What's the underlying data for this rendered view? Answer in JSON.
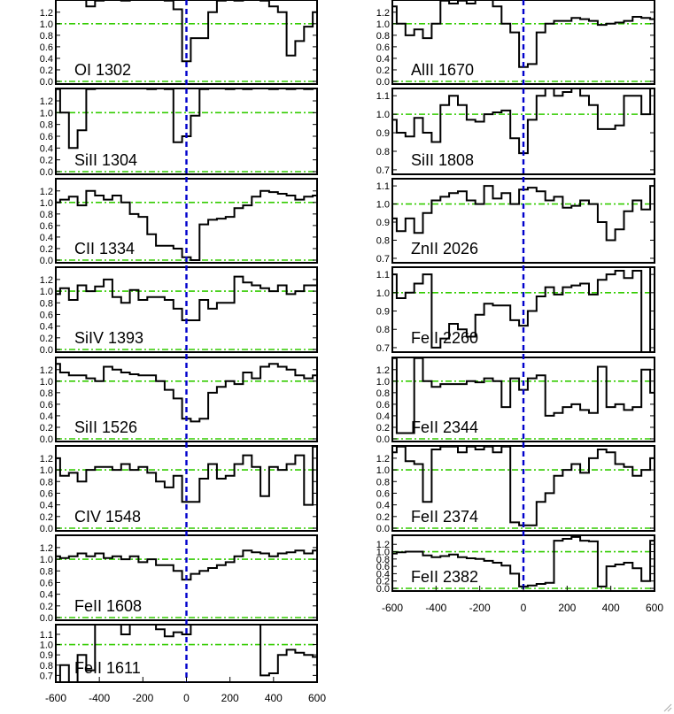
{
  "chart_data": [
    {
      "type": "line",
      "label": "OI 1302",
      "ylim": [
        0,
        1.35
      ],
      "yticks": [
        "0.0",
        "0.2",
        "0.4",
        "0.6",
        "0.8",
        "1.0",
        "1.2"
      ],
      "x": [
        -600,
        -560,
        -520,
        -480,
        -440,
        -400,
        -360,
        -320,
        -280,
        -240,
        -200,
        -160,
        -120,
        -80,
        -40,
        0,
        40,
        80,
        120,
        160,
        200,
        240,
        280,
        320,
        360,
        400,
        440,
        480,
        520,
        560,
        600
      ],
      "values": [
        1.45,
        1.45,
        1.42,
        1.5,
        1.3,
        1.4,
        1.45,
        1.5,
        1.4,
        1.45,
        1.42,
        1.5,
        1.45,
        1.4,
        1.25,
        0.35,
        0.75,
        0.75,
        1.2,
        1.4,
        1.45,
        1.4,
        1.5,
        1.45,
        1.4,
        1.3,
        1.2,
        0.45,
        0.7,
        0.95,
        1.2
      ]
    },
    {
      "type": "line",
      "label": "SiII 1304",
      "ylim": [
        0,
        1.35
      ],
      "yticks": [
        "0.0",
        "0.2",
        "0.4",
        "0.6",
        "0.8",
        "1.0",
        "1.2"
      ],
      "x": [
        -600,
        -560,
        -520,
        -480,
        -440,
        -400,
        -360,
        -320,
        -280,
        -240,
        -200,
        -160,
        -120,
        -80,
        -40,
        0,
        40,
        80,
        120,
        160,
        200,
        240,
        280,
        320,
        360,
        400,
        440,
        480,
        520,
        560,
        600
      ],
      "values": [
        1.4,
        1.0,
        0.4,
        0.7,
        1.4,
        1.45,
        1.42,
        1.45,
        1.5,
        1.45,
        1.42,
        1.4,
        1.45,
        1.4,
        0.5,
        0.6,
        0.95,
        1.4,
        1.45,
        1.42,
        1.4,
        1.45,
        1.4,
        1.45,
        1.42,
        1.4,
        1.45,
        1.4,
        1.42,
        1.4,
        1.45
      ]
    },
    {
      "type": "line",
      "label": "CII 1334",
      "ylim": [
        0,
        1.35
      ],
      "yticks": [
        "0.0",
        "0.2",
        "0.4",
        "0.6",
        "0.8",
        "1.0",
        "1.2"
      ],
      "x": [
        -600,
        -560,
        -520,
        -480,
        -440,
        -400,
        -360,
        -320,
        -280,
        -240,
        -200,
        -160,
        -120,
        -80,
        -40,
        0,
        40,
        80,
        120,
        160,
        200,
        240,
        280,
        320,
        360,
        400,
        440,
        480,
        520,
        560,
        600
      ],
      "values": [
        1.0,
        1.05,
        1.1,
        0.95,
        1.2,
        1.12,
        1.05,
        1.12,
        1.0,
        0.8,
        0.75,
        0.45,
        0.25,
        0.25,
        0.2,
        0.05,
        0.0,
        0.62,
        0.7,
        0.72,
        0.75,
        0.9,
        0.95,
        1.1,
        1.2,
        1.18,
        1.15,
        1.12,
        1.05,
        1.1,
        1.12
      ]
    },
    {
      "type": "line",
      "label": "SiIV 1393",
      "ylim": [
        0,
        1.35
      ],
      "yticks": [
        "0.0",
        "0.2",
        "0.4",
        "0.6",
        "0.8",
        "1.0",
        "1.2"
      ],
      "x": [
        -600,
        -560,
        -520,
        -480,
        -440,
        -400,
        -360,
        -320,
        -280,
        -240,
        -200,
        -160,
        -120,
        -80,
        -40,
        0,
        40,
        80,
        120,
        160,
        200,
        240,
        280,
        320,
        360,
        400,
        440,
        480,
        520,
        560,
        600
      ],
      "values": [
        0.95,
        1.05,
        0.85,
        1.1,
        1.0,
        1.08,
        1.2,
        0.9,
        0.8,
        1.02,
        0.85,
        0.9,
        0.9,
        0.85,
        0.7,
        0.5,
        0.5,
        0.85,
        0.7,
        0.8,
        0.8,
        1.25,
        1.15,
        1.1,
        1.05,
        1.0,
        1.1,
        0.95,
        1.0,
        1.1,
        1.1
      ]
    },
    {
      "type": "line",
      "label": "SiII 1526",
      "ylim": [
        0,
        1.35
      ],
      "yticks": [
        "0.0",
        "0.2",
        "0.4",
        "0.6",
        "0.8",
        "1.0",
        "1.2"
      ],
      "x": [
        -600,
        -560,
        -520,
        -480,
        -440,
        -400,
        -360,
        -320,
        -280,
        -240,
        -200,
        -160,
        -120,
        -80,
        -40,
        0,
        40,
        80,
        120,
        160,
        200,
        240,
        280,
        320,
        360,
        400,
        440,
        480,
        520,
        560,
        600
      ],
      "values": [
        1.3,
        1.15,
        1.1,
        1.1,
        1.05,
        1.0,
        1.25,
        1.2,
        1.15,
        1.12,
        1.1,
        1.1,
        1.0,
        0.85,
        0.7,
        0.35,
        0.3,
        0.35,
        0.8,
        0.9,
        1.0,
        0.95,
        1.15,
        1.05,
        1.25,
        1.3,
        1.25,
        1.2,
        1.1,
        1.05,
        1.1
      ]
    },
    {
      "type": "line",
      "label": "CIV 1548",
      "ylim": [
        0,
        1.35
      ],
      "yticks": [
        "0.0",
        "0.2",
        "0.4",
        "0.6",
        "0.8",
        "1.0",
        "1.2"
      ],
      "x": [
        -600,
        -560,
        -520,
        -480,
        -440,
        -400,
        -360,
        -320,
        -280,
        -240,
        -200,
        -160,
        -120,
        -80,
        -40,
        0,
        40,
        80,
        120,
        160,
        200,
        240,
        280,
        320,
        360,
        400,
        440,
        480,
        520,
        560,
        600
      ],
      "values": [
        1.2,
        0.9,
        0.95,
        0.8,
        1.0,
        1.05,
        1.05,
        1.0,
        1.1,
        1.0,
        1.05,
        0.95,
        0.8,
        0.7,
        0.9,
        0.45,
        0.45,
        0.85,
        1.1,
        0.85,
        0.9,
        1.1,
        1.25,
        1.05,
        0.55,
        1.05,
        1.0,
        1.1,
        1.25,
        0.4,
        1.4
      ]
    },
    {
      "type": "line",
      "label": "FeII 1608",
      "ylim": [
        0,
        1.35
      ],
      "yticks": [
        "0.0",
        "0.2",
        "0.4",
        "0.6",
        "0.8",
        "1.0",
        "1.2"
      ],
      "x": [
        -600,
        -560,
        -520,
        -480,
        -440,
        -400,
        -360,
        -320,
        -280,
        -240,
        -200,
        -160,
        -120,
        -80,
        -40,
        0,
        40,
        80,
        120,
        160,
        200,
        240,
        280,
        320,
        360,
        400,
        440,
        480,
        520,
        560,
        600
      ],
      "values": [
        1.05,
        1.02,
        1.05,
        1.1,
        1.05,
        1.1,
        1.02,
        1.05,
        1.0,
        1.05,
        0.95,
        1.0,
        0.9,
        0.9,
        0.8,
        0.65,
        0.75,
        0.8,
        0.85,
        0.9,
        0.95,
        1.05,
        1.15,
        1.12,
        1.1,
        1.05,
        1.1,
        1.12,
        1.15,
        1.1,
        1.15
      ]
    },
    {
      "type": "line",
      "label": "FeII 1611",
      "ylim": [
        0.66,
        1.16
      ],
      "yticks": [
        "0.7",
        "0.8",
        "0.9",
        "1.0",
        "1.1"
      ],
      "x": [
        -600,
        -560,
        -520,
        -480,
        -440,
        -400,
        -360,
        -320,
        -280,
        -240,
        -200,
        -160,
        -120,
        -80,
        -40,
        0,
        40,
        80,
        120,
        160,
        200,
        240,
        280,
        320,
        360,
        400,
        440,
        480,
        520,
        560,
        600
      ],
      "values": [
        0.5,
        0.8,
        0.6,
        0.9,
        0.75,
        1.2,
        1.3,
        1.2,
        1.1,
        1.2,
        1.25,
        1.2,
        1.15,
        1.08,
        1.12,
        1.1,
        1.2,
        1.3,
        1.2,
        1.3,
        1.25,
        1.2,
        1.25,
        1.2,
        0.7,
        0.72,
        0.9,
        0.95,
        0.92,
        0.9,
        0.88
      ]
    },
    {
      "type": "line",
      "label": "AlII 1670",
      "ylim": [
        0,
        1.35
      ],
      "yticks": [
        "0.0",
        "0.2",
        "0.4",
        "0.6",
        "0.8",
        "1.0",
        "1.2"
      ],
      "x": [
        -600,
        -560,
        -520,
        -480,
        -440,
        -400,
        -360,
        -320,
        -280,
        -240,
        -200,
        -160,
        -120,
        -80,
        -40,
        0,
        40,
        80,
        120,
        160,
        200,
        240,
        280,
        320,
        360,
        400,
        440,
        480,
        520,
        560,
        600
      ],
      "values": [
        1.3,
        1.0,
        0.8,
        0.9,
        0.75,
        1.0,
        1.4,
        1.35,
        1.4,
        1.35,
        1.5,
        1.45,
        1.3,
        1.0,
        0.85,
        0.25,
        0.3,
        0.85,
        1.0,
        1.05,
        1.05,
        1.1,
        1.08,
        1.05,
        0.98,
        1.0,
        1.02,
        1.05,
        1.12,
        1.1,
        1.08
      ]
    },
    {
      "type": "line",
      "label": "SiII 1808",
      "ylim": [
        0.69,
        1.12
      ],
      "yticks": [
        "0.7",
        "0.8",
        "0.9",
        "1.0",
        "1.1"
      ],
      "x": [
        -600,
        -560,
        -520,
        -480,
        -440,
        -400,
        -360,
        -320,
        -280,
        -240,
        -200,
        -160,
        -120,
        -80,
        -40,
        0,
        40,
        80,
        120,
        160,
        200,
        240,
        280,
        320,
        360,
        400,
        440,
        480,
        520,
        560,
        600
      ],
      "values": [
        0.97,
        0.9,
        0.88,
        0.98,
        0.9,
        0.85,
        1.05,
        1.1,
        1.05,
        0.97,
        0.96,
        1.0,
        1.01,
        1.02,
        0.87,
        0.79,
        0.97,
        1.1,
        1.15,
        1.1,
        1.12,
        1.15,
        1.1,
        1.05,
        0.92,
        0.92,
        0.94,
        1.1,
        1.1,
        1.0,
        1.15
      ]
    },
    {
      "type": "line",
      "label": "ZnII 2026",
      "ylim": [
        0.69,
        1.12
      ],
      "yticks": [
        "0.7",
        "0.8",
        "0.9",
        "1.0",
        "1.1"
      ],
      "x": [
        -600,
        -560,
        -520,
        -480,
        -440,
        -400,
        -360,
        -320,
        -280,
        -240,
        -200,
        -160,
        -120,
        -80,
        -40,
        0,
        40,
        80,
        120,
        160,
        200,
        240,
        280,
        320,
        360,
        400,
        440,
        480,
        520,
        560,
        600
      ],
      "values": [
        0.92,
        0.85,
        0.92,
        0.84,
        0.95,
        1.02,
        1.04,
        1.06,
        1.07,
        1.02,
        1.0,
        1.1,
        1.03,
        1.06,
        1.0,
        1.08,
        1.09,
        1.07,
        1.02,
        1.04,
        0.98,
        0.99,
        1.02,
        1.0,
        0.9,
        0.8,
        0.86,
        0.96,
        1.02,
        0.97,
        1.1
      ]
    },
    {
      "type": "line",
      "label": "FeII 2260",
      "ylim": [
        0.69,
        1.12
      ],
      "yticks": [
        "0.7",
        "0.8",
        "0.9",
        "1.0",
        "1.1"
      ],
      "x": [
        -600,
        -560,
        -520,
        -480,
        -440,
        -400,
        -360,
        -320,
        -280,
        -240,
        -200,
        -160,
        -120,
        -80,
        -40,
        0,
        40,
        80,
        120,
        160,
        200,
        240,
        280,
        320,
        360,
        400,
        440,
        480,
        520,
        560,
        600
      ],
      "values": [
        1.1,
        0.97,
        1.0,
        1.05,
        1.1,
        0.7,
        0.75,
        0.83,
        0.8,
        0.76,
        0.88,
        0.94,
        0.93,
        0.93,
        0.85,
        0.82,
        0.9,
        0.98,
        1.03,
        0.99,
        1.03,
        1.04,
        1.05,
        0.99,
        1.07,
        1.1,
        1.12,
        1.08,
        1.12,
        0.6,
        1.15
      ]
    },
    {
      "type": "line",
      "label": "FeII 2344",
      "ylim": [
        0,
        1.35
      ],
      "yticks": [
        "0.0",
        "0.2",
        "0.4",
        "0.6",
        "0.8",
        "1.0",
        "1.2"
      ],
      "x": [
        -600,
        -560,
        -520,
        -480,
        -440,
        -400,
        -360,
        -320,
        -280,
        -240,
        -200,
        -160,
        -120,
        -80,
        -40,
        0,
        40,
        80,
        120,
        160,
        200,
        240,
        280,
        320,
        360,
        400,
        440,
        480,
        520,
        560,
        600
      ],
      "values": [
        1.4,
        0.1,
        0.1,
        1.4,
        1.0,
        0.9,
        0.95,
        0.95,
        0.95,
        1.0,
        0.98,
        1.05,
        1.0,
        0.55,
        1.05,
        0.85,
        1.05,
        1.1,
        0.4,
        0.45,
        0.55,
        0.6,
        0.5,
        0.45,
        1.25,
        0.55,
        0.6,
        0.5,
        0.55,
        1.2,
        0.8
      ]
    },
    {
      "type": "line",
      "label": "FeII 2374",
      "ylim": [
        0,
        1.35
      ],
      "yticks": [
        "0.0",
        "0.2",
        "0.4",
        "0.6",
        "0.8",
        "1.0",
        "1.2"
      ],
      "x": [
        -600,
        -560,
        -520,
        -480,
        -440,
        -400,
        -360,
        -320,
        -280,
        -240,
        -200,
        -160,
        -120,
        -80,
        -40,
        0,
        40,
        80,
        120,
        160,
        200,
        240,
        280,
        320,
        360,
        400,
        440,
        480,
        520,
        560,
        600
      ],
      "values": [
        1.3,
        1.4,
        1.15,
        1.1,
        0.45,
        1.35,
        1.4,
        1.4,
        1.3,
        1.4,
        1.35,
        1.4,
        1.3,
        1.4,
        0.1,
        0.05,
        0.05,
        0.45,
        0.6,
        0.9,
        1.0,
        1.1,
        0.95,
        1.2,
        1.35,
        1.3,
        1.1,
        1.05,
        0.9,
        1.0,
        1.2
      ]
    },
    {
      "type": "line",
      "label": "FeII 2382",
      "ylim": [
        0,
        1.35
      ],
      "yticks": [
        "0.0",
        "0.2",
        "0.4",
        "0.6",
        "0.8",
        "1.0",
        "1.2"
      ],
      "x": [
        -600,
        -560,
        -520,
        -480,
        -440,
        -400,
        -360,
        -320,
        -280,
        -240,
        -200,
        -160,
        -120,
        -80,
        -40,
        0,
        40,
        80,
        120,
        160,
        200,
        240,
        280,
        320,
        360,
        400,
        440,
        480,
        520,
        560,
        600
      ],
      "values": [
        0.95,
        0.98,
        1.0,
        1.0,
        0.9,
        0.85,
        0.88,
        0.92,
        0.85,
        0.82,
        0.8,
        0.75,
        0.7,
        0.62,
        0.4,
        0.05,
        0.08,
        0.12,
        0.15,
        1.3,
        1.35,
        1.4,
        1.3,
        1.28,
        0.05,
        0.6,
        0.65,
        0.7,
        0.55,
        0.2,
        1.3
      ]
    }
  ],
  "x_axis": {
    "range": [
      -600,
      600
    ],
    "ticks": [
      "-600",
      "-400",
      "-200",
      "0",
      "200",
      "400",
      "600"
    ]
  },
  "colors": {
    "spectrum": "#000000",
    "continuum_line": "#33cc00",
    "velocity_zero_line": "#0000cc",
    "frame": "#000000"
  },
  "icons": {
    "resize_grip": "resize-grip-icon"
  }
}
